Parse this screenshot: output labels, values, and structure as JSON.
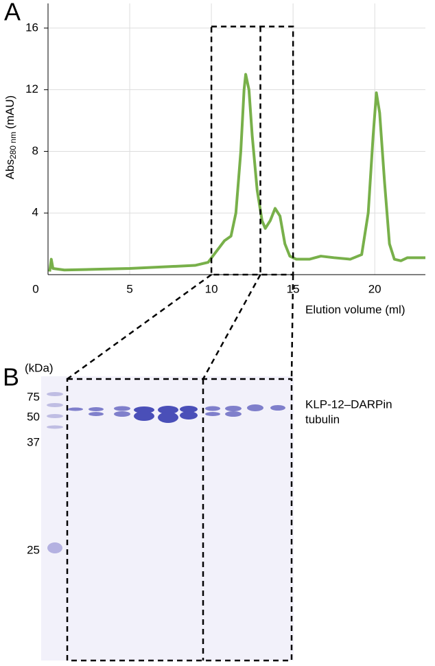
{
  "panel_a": "A",
  "panel_b": "B",
  "chart_data": {
    "type": "line",
    "ylabel": "Abs",
    "ylabel_sub": "280 nm",
    "ylabel_unit": "(mAU)",
    "xlabel": "Elution volume (ml)",
    "x": [
      0.1,
      0.2,
      0.3,
      1,
      3,
      5,
      7,
      9,
      9.8,
      10.3,
      10.8,
      11.2,
      11.5,
      11.8,
      12,
      12.1,
      12.3,
      12.5,
      12.8,
      13.1,
      13.3,
      13.6,
      13.9,
      14.2,
      14.5,
      14.8,
      15.2,
      16,
      16.7,
      17.5,
      18.5,
      19.2,
      19.6,
      19.9,
      20.1,
      20.3,
      20.6,
      20.9,
      21.2,
      21.6,
      22,
      23.1
    ],
    "series": [
      {
        "color": "#78b04a",
        "values": [
          0.2,
          1.0,
          0.4,
          0.3,
          0.35,
          0.4,
          0.5,
          0.6,
          0.8,
          1.5,
          2.2,
          2.5,
          4,
          8,
          12,
          13,
          12,
          9,
          5.5,
          3.5,
          3.0,
          3.5,
          4.3,
          3.8,
          2,
          1.2,
          1.0,
          1.0,
          1.2,
          1.1,
          1.0,
          1.3,
          4,
          9,
          11.8,
          10.5,
          6,
          2,
          1.0,
          0.9,
          1.1,
          1.1
        ]
      }
    ],
    "xlim": [
      0,
      23.1
    ],
    "ylim": [
      0,
      17.6
    ],
    "xticks": [
      0,
      5,
      10,
      15,
      20
    ],
    "yticks": [
      4,
      8,
      12,
      16
    ],
    "grid": true,
    "highlight": {
      "x": [
        10,
        13,
        15
      ],
      "top": 16.1
    }
  },
  "gel": {
    "unit": "(kDa)",
    "markers": [
      "75",
      "50",
      "37",
      "25"
    ],
    "bands": [
      "KLP-12–DARPin",
      "tubulin"
    ]
  }
}
